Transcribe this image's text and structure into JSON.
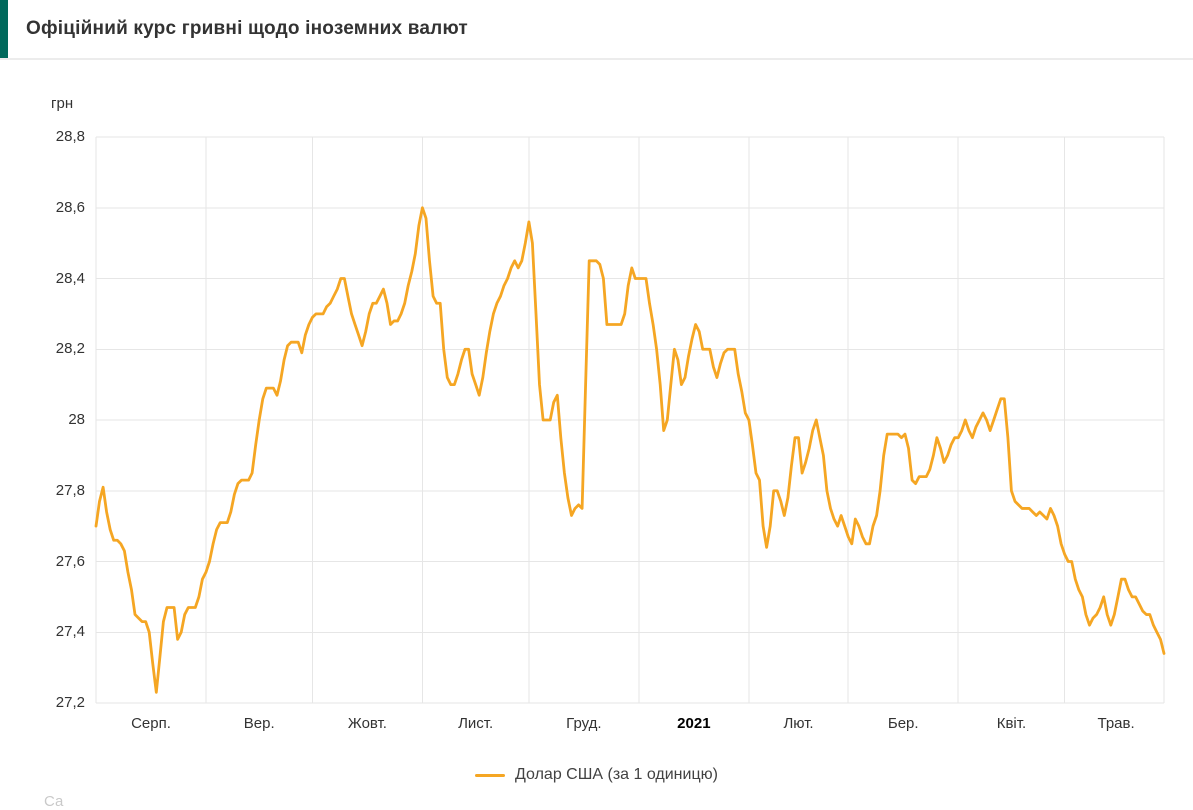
{
  "header": {
    "title": "Офіційний курс гривні щодо іноземних валют",
    "accent_color": "#00695C"
  },
  "chart_data": {
    "type": "line",
    "title": "Офіційний курс гривні щодо іноземних валют",
    "ylabel": "грн",
    "xlabel": "",
    "ylim": [
      27.2,
      28.8
    ],
    "grid": true,
    "legend_position": "bottom",
    "y_tick_labels": [
      "28,8",
      "28,6",
      "28,4",
      "28,2",
      "28",
      "27,8",
      "27,6",
      "27,4",
      "27,2"
    ],
    "x_tick_labels": [
      "Серп.",
      "Вер.",
      "Жовт.",
      "Лист.",
      "Груд.",
      "2021",
      "Лют.",
      "Бер.",
      "Квіт.",
      "Трав."
    ],
    "x_month_day_counts": [
      31,
      30,
      31,
      30,
      31,
      31,
      28,
      31,
      30,
      29
    ],
    "series": [
      {
        "name": "Долар США (за 1 одиницю)",
        "color": "#F5A623",
        "values": [
          27.7,
          27.77,
          27.81,
          27.74,
          27.69,
          27.66,
          27.66,
          27.65,
          27.63,
          27.57,
          27.52,
          27.45,
          27.44,
          27.43,
          27.43,
          27.4,
          27.31,
          27.23,
          27.33,
          27.43,
          27.47,
          27.47,
          27.47,
          27.38,
          27.4,
          27.45,
          27.47,
          27.47,
          27.47,
          27.5,
          27.55,
          27.57,
          27.6,
          27.65,
          27.69,
          27.71,
          27.71,
          27.71,
          27.74,
          27.79,
          27.82,
          27.83,
          27.83,
          27.83,
          27.85,
          27.93,
          28.0,
          28.06,
          28.09,
          28.09,
          28.09,
          28.07,
          28.11,
          28.17,
          28.21,
          28.22,
          28.22,
          28.22,
          28.19,
          28.24,
          28.27,
          28.29,
          28.3,
          28.3,
          28.3,
          28.32,
          28.33,
          28.35,
          28.37,
          28.4,
          28.4,
          28.35,
          28.3,
          28.27,
          28.24,
          28.21,
          28.25,
          28.3,
          28.33,
          28.33,
          28.35,
          28.37,
          28.33,
          28.27,
          28.28,
          28.28,
          28.3,
          28.33,
          28.38,
          28.42,
          28.47,
          28.55,
          28.6,
          28.57,
          28.45,
          28.35,
          28.33,
          28.33,
          28.2,
          28.12,
          28.1,
          28.1,
          28.13,
          28.17,
          28.2,
          28.2,
          28.13,
          28.1,
          28.07,
          28.12,
          28.19,
          28.25,
          28.3,
          28.33,
          28.35,
          28.38,
          28.4,
          28.43,
          28.45,
          28.43,
          28.45,
          28.5,
          28.56,
          28.5,
          28.3,
          28.1,
          28.0,
          28.0,
          28.0,
          28.05,
          28.07,
          27.95,
          27.85,
          27.78,
          27.73,
          27.75,
          27.76,
          27.75,
          28.1,
          28.45,
          28.45,
          28.45,
          28.44,
          28.4,
          28.27,
          28.27,
          28.27,
          28.27,
          28.27,
          28.3,
          28.38,
          28.43,
          28.4,
          28.4,
          28.4,
          28.4,
          28.33,
          28.27,
          28.2,
          28.1,
          27.97,
          28.0,
          28.1,
          28.2,
          28.17,
          28.1,
          28.12,
          28.18,
          28.23,
          28.27,
          28.25,
          28.2,
          28.2,
          28.2,
          28.15,
          28.12,
          28.16,
          28.19,
          28.2,
          28.2,
          28.2,
          28.13,
          28.08,
          28.02,
          28.0,
          27.93,
          27.85,
          27.83,
          27.7,
          27.64,
          27.7,
          27.8,
          27.8,
          27.77,
          27.73,
          27.78,
          27.87,
          27.95,
          27.95,
          27.85,
          27.88,
          27.92,
          27.97,
          28.0,
          27.95,
          27.9,
          27.8,
          27.75,
          27.72,
          27.7,
          27.73,
          27.7,
          27.67,
          27.65,
          27.72,
          27.7,
          27.67,
          27.65,
          27.65,
          27.7,
          27.73,
          27.8,
          27.9,
          27.96,
          27.96,
          27.96,
          27.96,
          27.95,
          27.96,
          27.92,
          27.83,
          27.82,
          27.84,
          27.84,
          27.84,
          27.86,
          27.9,
          27.95,
          27.92,
          27.88,
          27.9,
          27.93,
          27.95,
          27.95,
          27.97,
          28.0,
          27.97,
          27.95,
          27.98,
          28.0,
          28.02,
          28.0,
          27.97,
          28.0,
          28.03,
          28.06,
          28.06,
          27.95,
          27.8,
          27.77,
          27.76,
          27.75,
          27.75,
          27.75,
          27.74,
          27.73,
          27.74,
          27.73,
          27.72,
          27.75,
          27.73,
          27.7,
          27.65,
          27.62,
          27.6,
          27.6,
          27.55,
          27.52,
          27.5,
          27.45,
          27.42,
          27.44,
          27.45,
          27.47,
          27.5,
          27.45,
          27.42,
          27.45,
          27.5,
          27.55,
          27.55,
          27.52,
          27.5,
          27.5,
          27.48,
          27.46,
          27.45,
          27.45,
          27.42,
          27.4,
          27.38,
          27.34
        ]
      }
    ]
  },
  "legend": {
    "label": "Долар США (за 1 одиницю)"
  },
  "watermark": {
    "text": "Са"
  },
  "colors": {
    "grid": "#e6e6e6",
    "line": "#F5A623",
    "axis_text": "#333333"
  }
}
